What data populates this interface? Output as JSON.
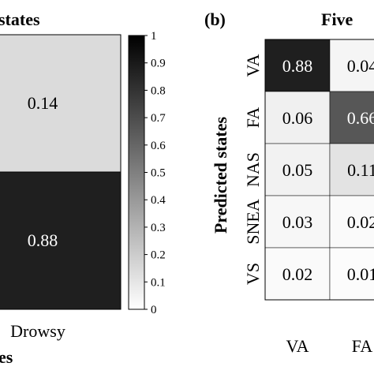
{
  "chart_data": [
    {
      "type": "heatmap",
      "title": "states",
      "columns_visible": [
        "Drowsy"
      ],
      "values": [
        [
          0.14
        ],
        [
          0.88
        ]
      ],
      "xlabel": "es",
      "cell_text_color_dark": "#ffffff",
      "cell_text_color_light": "#000000"
    },
    {
      "type": "colorbar",
      "range": [
        0,
        1
      ],
      "ticks": [
        "1",
        "0.9",
        "0.8",
        "0.7",
        "0.6",
        "0.5",
        "0.4",
        "0.3",
        "0.2",
        "0.1",
        "0"
      ]
    },
    {
      "type": "heatmap",
      "panel_label": "(b)",
      "title": "Five",
      "ylabel": "Predicted states",
      "rows": [
        "VA",
        "FA",
        "NAS",
        "SNEA",
        "VS"
      ],
      "columns_visible": [
        "VA",
        "FA"
      ],
      "values": [
        [
          0.88,
          0.04
        ],
        [
          0.06,
          0.66
        ],
        [
          0.05,
          0.11
        ],
        [
          0.03,
          0.02
        ],
        [
          0.02,
          0.01
        ]
      ],
      "value_labels": [
        [
          "0.88",
          "0.04"
        ],
        [
          "0.06",
          "0.66"
        ],
        [
          "0.05",
          "0.11"
        ],
        [
          "0.03",
          "0.02"
        ],
        [
          "0.02",
          "0.01"
        ]
      ]
    }
  ]
}
